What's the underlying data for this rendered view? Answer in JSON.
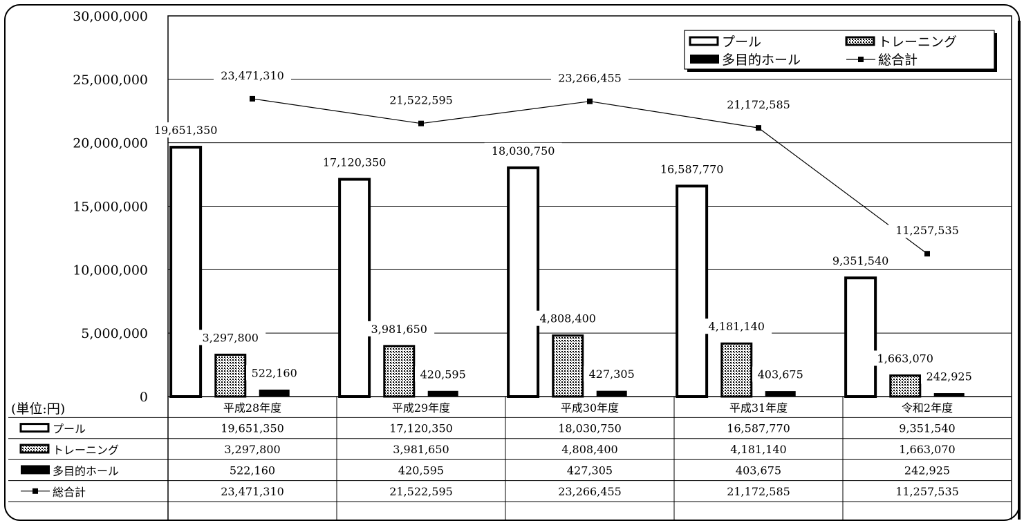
{
  "chart_data": {
    "type": "bar",
    "title": "",
    "unit_label": "(単位:円)",
    "categories": [
      "平成28年度",
      "平成29年度",
      "平成30年度",
      "平成31年度",
      "令和2年度"
    ],
    "series": [
      {
        "name": "プール",
        "kind": "bar",
        "pattern": "hollow",
        "values": [
          19651350,
          17120350,
          18030750,
          16587770,
          9351540
        ],
        "labels": [
          "19,651,350",
          "17,120,350",
          "18,030,750",
          "16,587,770",
          "9,351,540"
        ]
      },
      {
        "name": "トレーニング",
        "kind": "bar",
        "pattern": "dotted",
        "values": [
          3297800,
          3981650,
          4808400,
          4181140,
          1663070
        ],
        "labels": [
          "3,297,800",
          "3,981,650",
          "4,808,400",
          "4,181,140",
          "1,663,070"
        ]
      },
      {
        "name": "多目的ホール",
        "kind": "bar",
        "pattern": "solid",
        "values": [
          522160,
          420595,
          427305,
          403675,
          242925
        ],
        "labels": [
          "522,160",
          "420,595",
          "427,305",
          "403,675",
          "242,925"
        ]
      },
      {
        "name": "総合計",
        "kind": "line",
        "pattern": "line-square",
        "values": [
          23471310,
          21522595,
          23266455,
          21172585,
          11257535
        ],
        "labels": [
          "23,471,310",
          "21,522,595",
          "23,266,455",
          "21,172,585",
          "11,257,535"
        ]
      }
    ],
    "ylim": [
      0,
      30000000
    ],
    "yticks": [
      0,
      5000000,
      10000000,
      15000000,
      20000000,
      25000000,
      30000000
    ],
    "ytick_labels": [
      "0",
      "5,000,000",
      "10,000,000",
      "15,000,000",
      "20,000,000",
      "25,000,000",
      "30,000,000"
    ],
    "grid": true,
    "legend_position": "top-right",
    "data_table": true,
    "colors": {
      "line": "#000000",
      "bar_fill_solid": "#000000",
      "bar_fill_hollow": "#ffffff",
      "dot_pattern": "#000000"
    }
  }
}
